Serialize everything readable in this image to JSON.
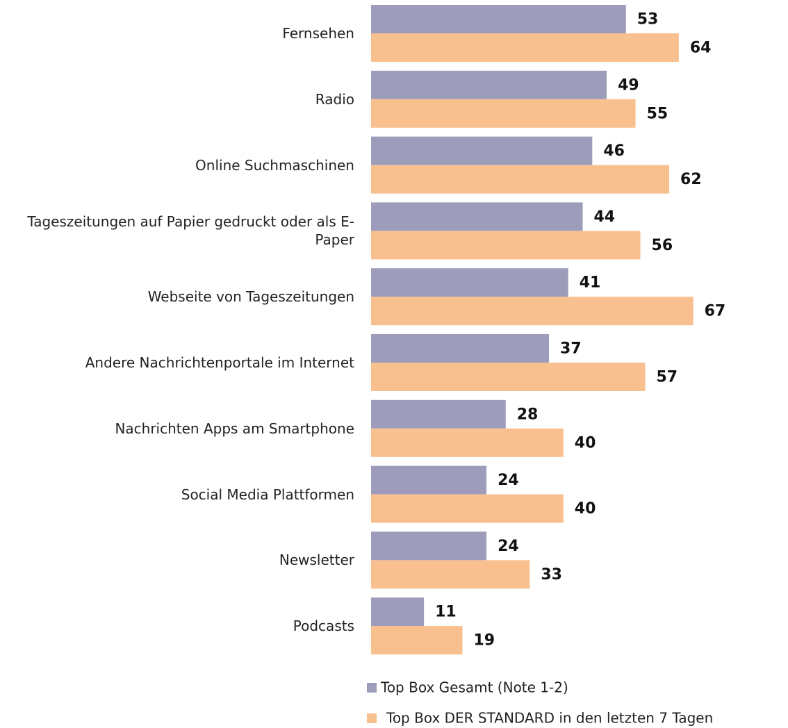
{
  "chart_data": {
    "type": "bar",
    "orientation": "horizontal",
    "categories": [
      "Fernsehen",
      "Radio",
      "Online Suchmaschinen",
      "Tageszeitungen auf Papier gedruckt oder als E-Paper",
      "Webseite von Tageszeitungen",
      "Andere Nachrichtenportale im Internet",
      "Nachrichten Apps am Smartphone",
      "Social Media Plattformen",
      "Newsletter",
      "Podcasts"
    ],
    "series": [
      {
        "name": "Top Box Gesamt (Note 1-2)",
        "color": "#9d9cba",
        "values": [
          53,
          49,
          46,
          44,
          41,
          37,
          28,
          24,
          24,
          11
        ]
      },
      {
        "name": "Top Box DER STANDARD in den letzten 7 Tagen",
        "color": "#f9c08f",
        "values": [
          64,
          55,
          62,
          56,
          67,
          57,
          40,
          40,
          33,
          19
        ]
      }
    ],
    "legend": "bottom"
  }
}
